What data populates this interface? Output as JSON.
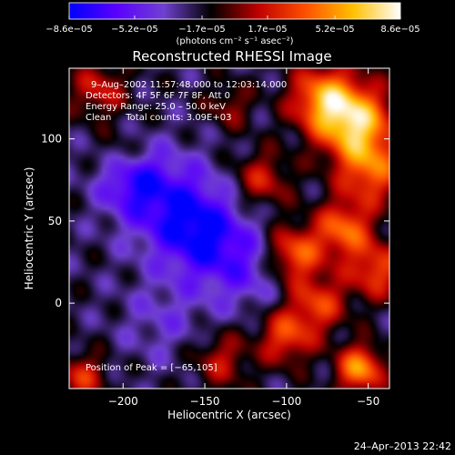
{
  "chart_data": {
    "type": "heatmap",
    "title": "Reconstructed RHESSI Image",
    "xlabel": "Heliocentric X (arcsec)",
    "ylabel": "Heliocentric Y (arcsec)",
    "xlim": [
      -233,
      -37
    ],
    "ylim": [
      -52,
      143
    ],
    "x_ticks": [
      {
        "value": -200,
        "label": "−200"
      },
      {
        "value": -150,
        "label": "−150"
      },
      {
        "value": -100,
        "label": "−100"
      },
      {
        "value": -50,
        "label": "−50"
      }
    ],
    "y_ticks": [
      {
        "value": 0,
        "label": "0"
      },
      {
        "value": 50,
        "label": "50"
      },
      {
        "value": 100,
        "label": "100"
      }
    ],
    "colorbar": {
      "min": -8.6e-05,
      "max": 8.6e-05,
      "tick_values": [
        -8.6e-05,
        -5.2e-05,
        -1.7e-05,
        1.7e-05,
        5.2e-05,
        8.6e-05
      ],
      "tick_labels": [
        "−8.6e−05",
        "−5.2e−05",
        "−1.7e−05",
        "1.7e−05",
        "5.2e−05",
        "8.6e−05"
      ],
      "unit_label": "(photons cm⁻² s⁻¹ asec⁻²)",
      "colors": [
        "#0000ff",
        "#5a00ff",
        "#7040d0",
        "#000000",
        "#c00000",
        "#ff5000",
        "#ffc000",
        "#ffffff"
      ]
    },
    "annotations": [
      "9–Aug–2002 11:57:48.000 to 12:03:14.000",
      "Detectors: 4F 5F 6F 7F 8F, Att 0",
      "Energy Range: 25.0 – 50.0 keV",
      "Clean     Total counts: 3.09E+03"
    ],
    "peak_label": "Position of Peak = [−65,105]",
    "peak": {
      "x": -65,
      "y": 105
    },
    "sources": [
      {
        "x": -58,
        "y": 110,
        "amp": 1.0,
        "r": 16
      },
      {
        "x": -78,
        "y": 125,
        "amp": 0.75,
        "r": 14
      },
      {
        "x": -48,
        "y": 80,
        "amp": 0.65,
        "r": 14
      },
      {
        "x": -65,
        "y": 45,
        "amp": 0.7,
        "r": 12
      },
      {
        "x": -45,
        "y": 20,
        "amp": 0.6,
        "r": 12
      },
      {
        "x": -95,
        "y": 30,
        "amp": 0.7,
        "r": 12
      },
      {
        "x": -115,
        "y": 75,
        "amp": 0.45,
        "r": 12
      },
      {
        "x": -100,
        "y": -20,
        "amp": 0.6,
        "r": 12
      },
      {
        "x": -55,
        "y": -40,
        "amp": 0.85,
        "r": 10
      },
      {
        "x": -140,
        "y": -35,
        "amp": 0.4,
        "r": 12
      },
      {
        "x": -225,
        "y": -45,
        "amp": 0.5,
        "r": 10
      },
      {
        "x": -215,
        "y": 130,
        "amp": 0.45,
        "r": 12
      },
      {
        "x": -200,
        "y": 90,
        "amp": 0.25,
        "r": 10
      },
      {
        "x": -80,
        "y": 0,
        "amp": 0.55,
        "r": 12
      },
      {
        "x": -135,
        "y": 120,
        "amp": 0.3,
        "r": 10
      },
      {
        "x": -170,
        "y": 60,
        "amp": -0.5,
        "r": 20
      },
      {
        "x": -150,
        "y": 40,
        "amp": -0.55,
        "r": 18
      },
      {
        "x": -195,
        "y": 75,
        "amp": -0.5,
        "r": 14
      },
      {
        "x": -125,
        "y": 20,
        "amp": -0.3,
        "r": 18
      },
      {
        "x": -175,
        "y": -10,
        "amp": -0.2,
        "r": 18
      }
    ]
  },
  "footer": {
    "timestamp": "24–Apr–2013 22:42"
  }
}
